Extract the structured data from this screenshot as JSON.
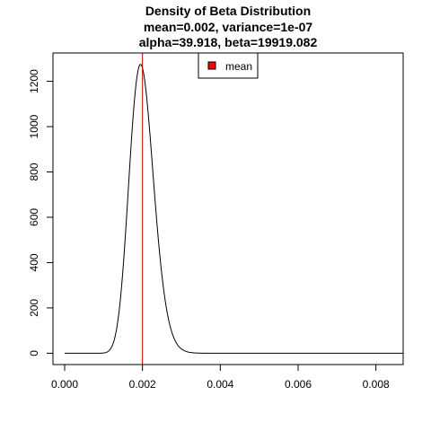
{
  "chart_data": {
    "type": "line",
    "title_lines": [
      "Density of Beta Distribution",
      "mean=0.002, variance=1e-07",
      "alpha=39.918, beta=19919.082"
    ],
    "xlabel": "",
    "ylabel": "",
    "xlim": [
      -0.0003,
      0.0087
    ],
    "ylim": [
      -50,
      1325
    ],
    "x_ticks": [
      0,
      0.002,
      0.004,
      0.006,
      0.008
    ],
    "x_tick_labels": [
      "0.000",
      "0.002",
      "0.004",
      "0.006",
      "0.008"
    ],
    "y_ticks": [
      0,
      200,
      400,
      600,
      800,
      1000,
      1200
    ],
    "y_tick_labels": [
      "0",
      "200",
      "400",
      "600",
      "800",
      "1000",
      "1200"
    ],
    "distribution": {
      "family": "beta",
      "alpha": 39.918,
      "beta": 19919.082
    },
    "curve_x_range": [
      0,
      0.0087
    ],
    "mean_line": {
      "x": 0.002,
      "color": "#cc0000"
    },
    "curve_color": "#000000",
    "legend": {
      "position": "top-center",
      "entries": [
        {
          "label": "mean",
          "color": "#ff0000"
        }
      ]
    },
    "grid": false
  }
}
